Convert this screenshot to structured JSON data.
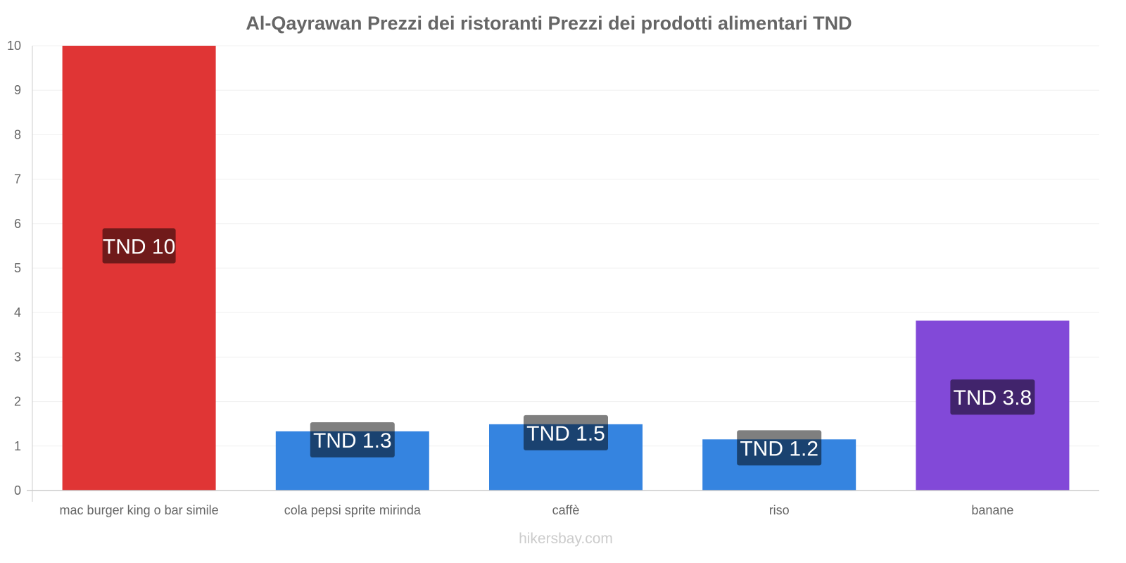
{
  "chart_data": {
    "type": "bar",
    "title": "Al-Qayrawan Prezzi dei ristoranti Prezzi dei prodotti alimentari TND",
    "categories": [
      "mac burger king o bar simile",
      "cola pepsi sprite mirinda",
      "caffè",
      "riso",
      "banane"
    ],
    "values": [
      10,
      1.33,
      1.49,
      1.15,
      3.82
    ],
    "data_labels": [
      "TND 10",
      "TND 1.3",
      "TND 1.5",
      "TND 1.2",
      "TND 3.8"
    ],
    "colors": [
      "#e03535",
      "#3584e0",
      "#3584e0",
      "#3584e0",
      "#8249d8"
    ],
    "label_colors": [
      "#6e1b1b",
      "#1d4273",
      "#1d4273",
      "#1d4273",
      "#40246c"
    ],
    "xlabel": "",
    "ylabel": "",
    "ylim": [
      0,
      10
    ],
    "yticks": [
      "0",
      "1",
      "2",
      "3",
      "4",
      "5",
      "6",
      "7",
      "8",
      "9",
      "10"
    ],
    "grid": true
  },
  "source": "hikersbay.com"
}
